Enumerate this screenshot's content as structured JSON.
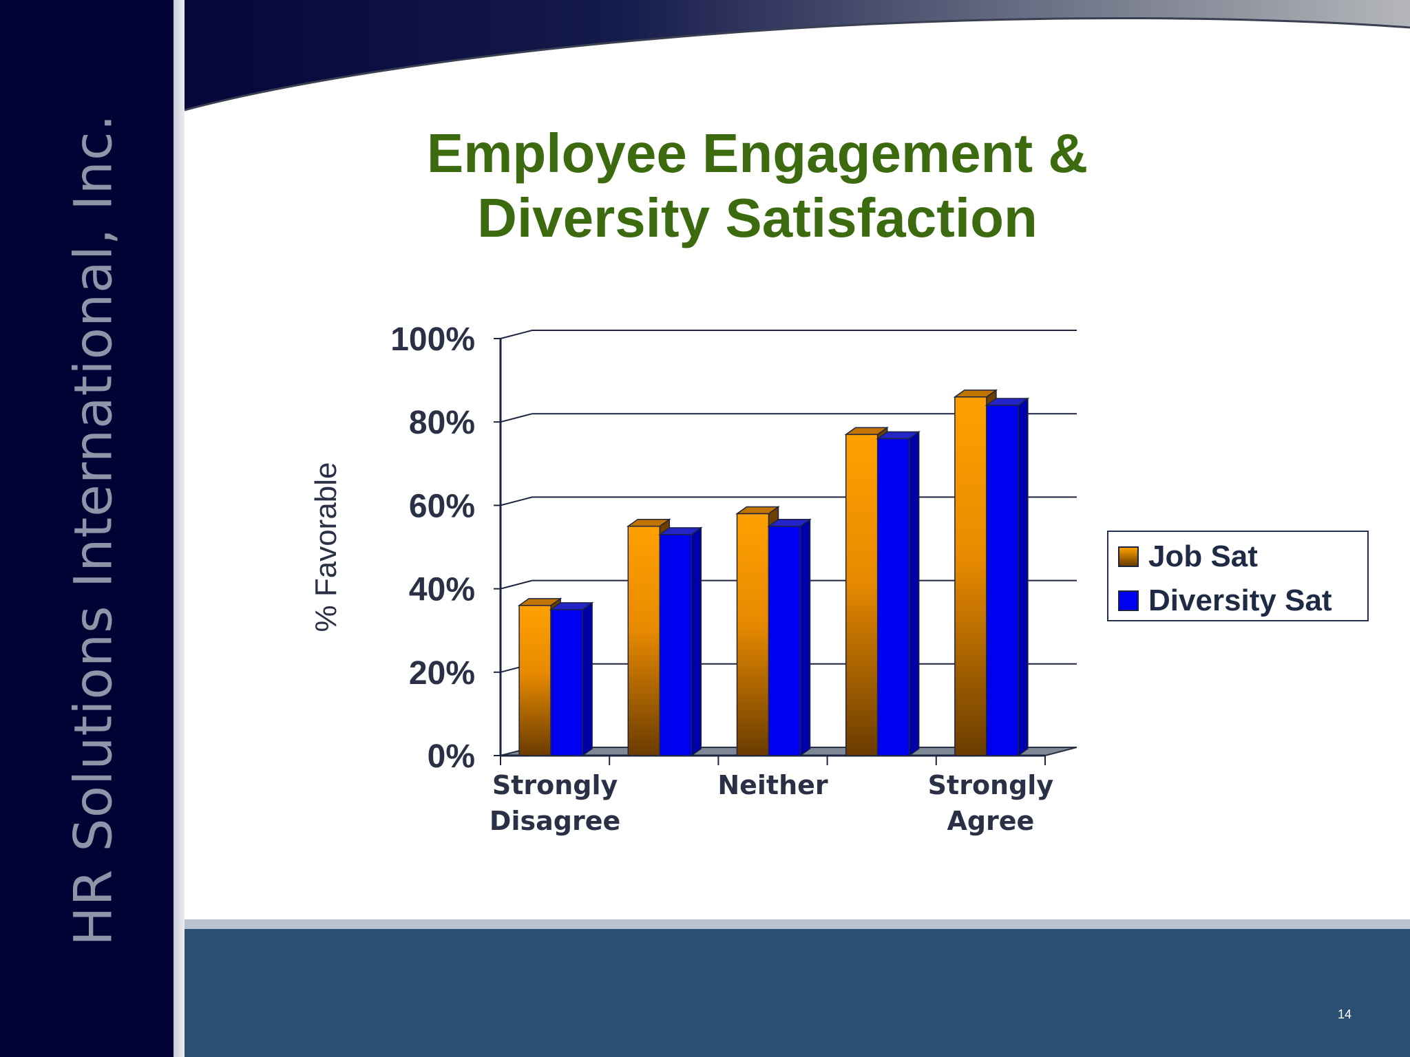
{
  "company_name": "HR Solutions International, Inc.",
  "slide_title_lines": [
    "Employee Engagement &",
    "Diversity Satisfaction"
  ],
  "page_number": "14",
  "colors": {
    "title": "#3c6a0f",
    "sidebar": "#020234",
    "footer": "#2c5073",
    "job_sat_top": "#ffa000",
    "job_sat_bottom": "#6a3c00",
    "diversity_sat": "#0000f0"
  },
  "chart_data": {
    "type": "bar",
    "title": "",
    "xlabel": "",
    "ylabel": "% Favorable",
    "ylim": [
      0,
      100
    ],
    "y_ticks": [
      "0%",
      "20%",
      "40%",
      "60%",
      "80%",
      "100%"
    ],
    "x_tick_labels": [
      {
        "category_index": 0,
        "lines": [
          "Strongly",
          "Disagree"
        ]
      },
      {
        "category_index": 2,
        "lines": [
          "Neither"
        ]
      },
      {
        "category_index": 4,
        "lines": [
          "Strongly",
          "Agree"
        ]
      }
    ],
    "categories": [
      "1",
      "2",
      "3",
      "4",
      "5"
    ],
    "series": [
      {
        "name": "Job Sat",
        "values": [
          36,
          55,
          58,
          77,
          86
        ]
      },
      {
        "name": "Diversity Sat",
        "values": [
          35,
          53,
          55,
          76,
          84
        ]
      }
    ],
    "legend_position": "right",
    "grid": true
  }
}
